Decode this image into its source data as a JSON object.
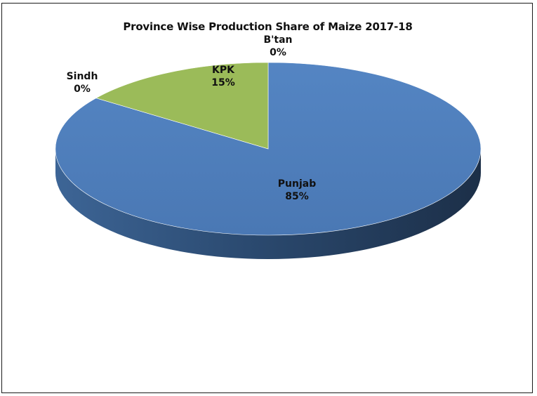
{
  "chart_data": {
    "type": "pie",
    "style": "3d",
    "title": "Province Wise Production Share of Maize 2017-18",
    "slices": [
      {
        "label": "Punjab",
        "value": 85,
        "pct_label": "85%",
        "color": "#4f81bd"
      },
      {
        "label": "Sindh",
        "value": 0,
        "pct_label": "0%",
        "color": "#c0504d"
      },
      {
        "label": "KPK",
        "value": 15,
        "pct_label": "15%",
        "color": "#9bbb59"
      },
      {
        "label": "B'tan",
        "value": 0,
        "pct_label": "0%",
        "color": "#8064a2"
      }
    ],
    "legend": "none"
  }
}
